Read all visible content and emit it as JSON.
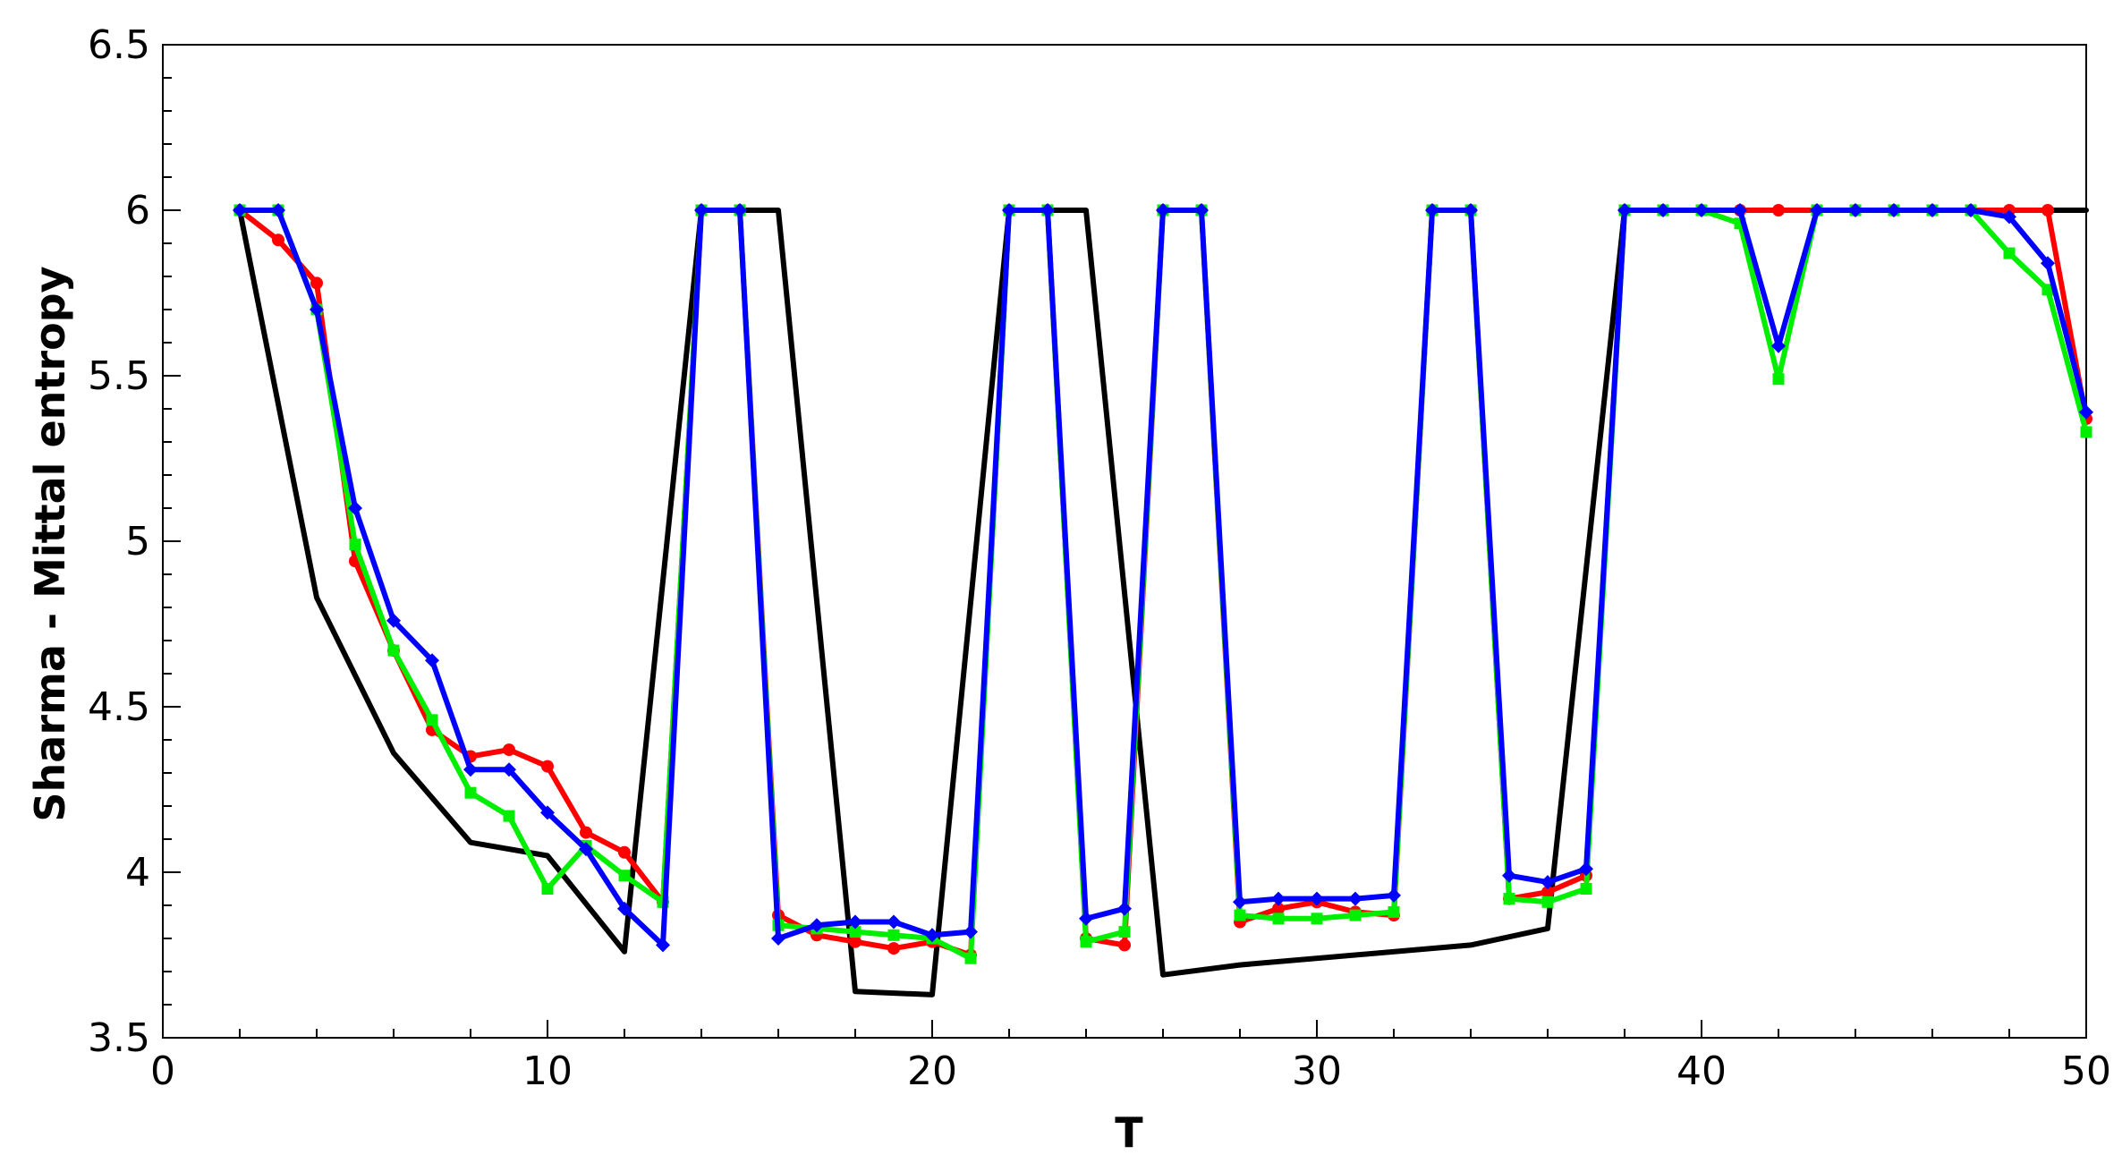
{
  "chart_data": {
    "type": "line",
    "title": "",
    "xlabel": "T",
    "ylabel": "Sharma - Mittal entropy",
    "xlim": [
      0,
      50
    ],
    "ylim": [
      3.5,
      6.5
    ],
    "xticks": [
      0,
      10,
      20,
      30,
      40,
      50
    ],
    "yticks": [
      3.5,
      4,
      4.5,
      5,
      5.5,
      6,
      6.5
    ],
    "xtick_labels": [
      "0",
      "10",
      "20",
      "30",
      "40",
      "50"
    ],
    "ytick_labels": [
      "3.5",
      "4",
      "4.5",
      "5",
      "5.5",
      "6",
      "6.5"
    ],
    "grid": false,
    "legend": "none",
    "series": [
      {
        "color": "#000000",
        "marker": "none",
        "x": [
          2,
          4,
          6,
          8,
          10,
          12,
          14,
          16,
          18,
          20,
          22,
          24,
          26,
          28,
          34,
          36,
          38,
          50
        ],
        "y": [
          6.0,
          4.83,
          4.36,
          4.09,
          4.05,
          3.76,
          6.0,
          6.0,
          3.64,
          3.63,
          6.0,
          6.0,
          3.69,
          3.72,
          3.78,
          3.83,
          6.0,
          6.0
        ]
      },
      {
        "color": "#ff0000",
        "marker": "circle",
        "x": [
          2,
          3,
          4,
          5,
          6,
          7,
          8,
          9,
          10,
          11,
          12,
          13,
          14,
          15,
          16,
          17,
          18,
          19,
          20,
          21,
          22,
          23,
          24,
          25,
          26,
          27,
          28,
          29,
          30,
          31,
          32,
          33,
          34,
          35,
          36,
          37,
          38,
          39,
          40,
          41,
          42,
          43,
          44,
          45,
          46,
          47,
          48,
          49,
          50
        ],
        "y": [
          6.0,
          5.91,
          5.78,
          4.94,
          4.67,
          4.43,
          4.35,
          4.37,
          4.32,
          4.12,
          4.06,
          3.91,
          6.0,
          6.0,
          3.87,
          3.81,
          3.79,
          3.77,
          3.79,
          3.75,
          6.0,
          6.0,
          3.8,
          3.78,
          6.0,
          6.0,
          3.85,
          3.89,
          3.91,
          3.88,
          3.87,
          6.0,
          6.0,
          3.92,
          3.94,
          3.99,
          6.0,
          6.0,
          6.0,
          6.0,
          6.0,
          6.0,
          6.0,
          6.0,
          6.0,
          6.0,
          6.0,
          6.0,
          5.37
        ]
      },
      {
        "color": "#00ee00",
        "marker": "square",
        "x": [
          2,
          3,
          4,
          5,
          6,
          7,
          8,
          9,
          10,
          11,
          12,
          13,
          14,
          15,
          16,
          17,
          18,
          19,
          20,
          21,
          22,
          23,
          24,
          25,
          26,
          27,
          28,
          29,
          30,
          31,
          32,
          33,
          34,
          35,
          36,
          37,
          38,
          39,
          40,
          41,
          42,
          43,
          44,
          45,
          46,
          47,
          48,
          49,
          50
        ],
        "y": [
          6.0,
          6.0,
          5.7,
          4.99,
          4.67,
          4.46,
          4.24,
          4.17,
          3.95,
          4.08,
          3.99,
          3.91,
          6.0,
          6.0,
          3.84,
          3.83,
          3.82,
          3.81,
          3.8,
          3.74,
          6.0,
          6.0,
          3.79,
          3.82,
          6.0,
          6.0,
          3.87,
          3.86,
          3.86,
          3.87,
          3.88,
          6.0,
          6.0,
          3.92,
          3.91,
          3.95,
          6.0,
          6.0,
          6.0,
          5.96,
          5.49,
          6.0,
          6.0,
          6.0,
          6.0,
          6.0,
          5.87,
          5.76,
          5.33
        ]
      },
      {
        "color": "#0000ff",
        "marker": "diamond",
        "x": [
          2,
          3,
          4,
          5,
          6,
          7,
          8,
          9,
          10,
          11,
          12,
          13,
          14,
          15,
          16,
          17,
          18,
          19,
          20,
          21,
          22,
          23,
          24,
          25,
          26,
          27,
          28,
          29,
          30,
          31,
          32,
          33,
          34,
          35,
          36,
          37,
          38,
          39,
          40,
          41,
          42,
          43,
          44,
          45,
          46,
          47,
          48,
          49,
          50
        ],
        "y": [
          6.0,
          6.0,
          5.7,
          5.1,
          4.76,
          4.64,
          4.31,
          4.31,
          4.18,
          4.07,
          3.89,
          3.78,
          6.0,
          6.0,
          3.8,
          3.84,
          3.85,
          3.85,
          3.81,
          3.82,
          6.0,
          6.0,
          3.86,
          3.89,
          6.0,
          6.0,
          3.91,
          3.92,
          3.92,
          3.92,
          3.93,
          6.0,
          6.0,
          3.99,
          3.97,
          4.01,
          6.0,
          6.0,
          6.0,
          6.0,
          5.59,
          6.0,
          6.0,
          6.0,
          6.0,
          6.0,
          5.98,
          5.84,
          5.39
        ]
      }
    ]
  }
}
